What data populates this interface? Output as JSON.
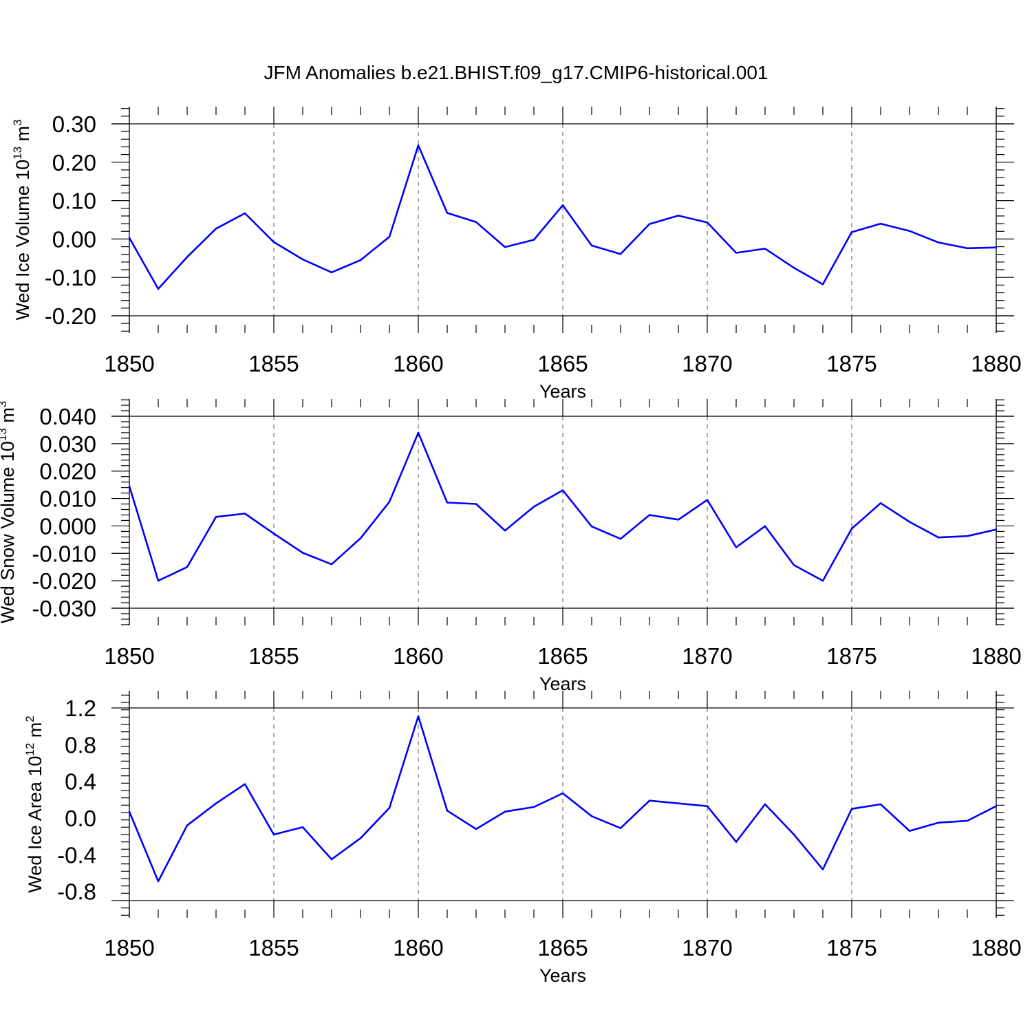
{
  "figure": {
    "title": "JFM Anomalies b.e21.BHIST.f09_g17.CMIP6-historical.001",
    "line_color": "#0000ff"
  },
  "chart_data": [
    {
      "type": "line",
      "title": "",
      "xlabel": "Years",
      "ylabel_main": "Wed Ice Volume 10",
      "ylabel_exp": "13",
      "ylabel_unit": " m",
      "ylabel_unit_exp": "3",
      "xlim": [
        1850,
        1880
      ],
      "ylim": [
        -0.2,
        0.3
      ],
      "x_ticks": [
        "1850",
        "1855",
        "1860",
        "1865",
        "1870",
        "1875",
        "1880"
      ],
      "y_ticks": [
        "-0.20",
        "-0.10",
        "0.00",
        "0.10",
        "0.20",
        "0.30"
      ],
      "x": [
        1850,
        1851,
        1852,
        1853,
        1854,
        1855,
        1856,
        1857,
        1858,
        1859,
        1860,
        1861,
        1862,
        1863,
        1864,
        1865,
        1866,
        1867,
        1868,
        1869,
        1870,
        1871,
        1872,
        1873,
        1874,
        1875,
        1876,
        1877,
        1878,
        1879,
        1880
      ],
      "series": [
        {
          "name": "Wed Ice Volume",
          "values": [
            0.003,
            -0.13,
            -0.047,
            0.027,
            0.067,
            -0.008,
            -0.053,
            -0.087,
            -0.055,
            0.006,
            0.244,
            0.068,
            0.044,
            -0.021,
            -0.002,
            0.088,
            -0.017,
            -0.039,
            0.039,
            0.061,
            0.043,
            -0.036,
            -0.025,
            -0.075,
            -0.118,
            0.018,
            0.04,
            0.021,
            -0.009,
            -0.024,
            -0.022
          ]
        }
      ]
    },
    {
      "type": "line",
      "title": "",
      "xlabel": "Years",
      "ylabel_main": "Wed Snow Volume 10",
      "ylabel_exp": "13",
      "ylabel_unit": " m",
      "ylabel_unit_exp": "3",
      "xlim": [
        1850,
        1880
      ],
      "ylim": [
        -0.03,
        0.04
      ],
      "x_ticks": [
        "1850",
        "1855",
        "1860",
        "1865",
        "1870",
        "1875",
        "1880"
      ],
      "y_ticks": [
        "-0.030",
        "-0.020",
        "-0.010",
        "0.000",
        "0.010",
        "0.020",
        "0.030",
        "0.040"
      ],
      "x": [
        1850,
        1851,
        1852,
        1853,
        1854,
        1855,
        1856,
        1857,
        1858,
        1859,
        1860,
        1861,
        1862,
        1863,
        1864,
        1865,
        1866,
        1867,
        1868,
        1869,
        1870,
        1871,
        1872,
        1873,
        1874,
        1875,
        1876,
        1877,
        1878,
        1879,
        1880
      ],
      "series": [
        {
          "name": "Wed Snow Volume",
          "values": [
            0.0145,
            -0.02,
            -0.015,
            0.0033,
            0.0045,
            -0.0028,
            -0.0098,
            -0.014,
            -0.0045,
            0.0088,
            0.034,
            0.0085,
            0.008,
            -0.0017,
            0.007,
            0.013,
            -0.0002,
            -0.0047,
            0.004,
            0.0023,
            0.0095,
            -0.0078,
            -0.0001,
            -0.0143,
            -0.02,
            -0.001,
            0.0083,
            0.0015,
            -0.0042,
            -0.0037,
            -0.0013
          ]
        }
      ]
    },
    {
      "type": "line",
      "title": "",
      "xlabel": "Years",
      "ylabel_main": "Wed Ice Area 10",
      "ylabel_exp": "12",
      "ylabel_unit": " m",
      "ylabel_unit_exp": "2",
      "xlim": [
        1850,
        1880
      ],
      "ylim": [
        -0.9,
        1.2
      ],
      "x_ticks": [
        "1850",
        "1855",
        "1860",
        "1865",
        "1870",
        "1875",
        "1880"
      ],
      "y_ticks": [
        "-0.8",
        "-0.4",
        "0.0",
        "0.4",
        "0.8",
        "1.2"
      ],
      "x": [
        1850,
        1851,
        1852,
        1853,
        1854,
        1855,
        1856,
        1857,
        1858,
        1859,
        1860,
        1861,
        1862,
        1863,
        1864,
        1865,
        1866,
        1867,
        1868,
        1869,
        1870,
        1871,
        1872,
        1873,
        1874,
        1875,
        1876,
        1877,
        1878,
        1879,
        1880
      ],
      "series": [
        {
          "name": "Wed Ice Area",
          "values": [
            0.07,
            -0.69,
            -0.08,
            0.16,
            0.37,
            -0.18,
            -0.1,
            -0.45,
            -0.22,
            0.11,
            1.11,
            0.08,
            -0.12,
            0.07,
            0.12,
            0.27,
            0.02,
            -0.11,
            0.19,
            0.16,
            0.13,
            -0.26,
            0.15,
            -0.18,
            -0.56,
            0.1,
            0.15,
            -0.14,
            -0.05,
            -0.03,
            0.13
          ]
        }
      ]
    }
  ]
}
